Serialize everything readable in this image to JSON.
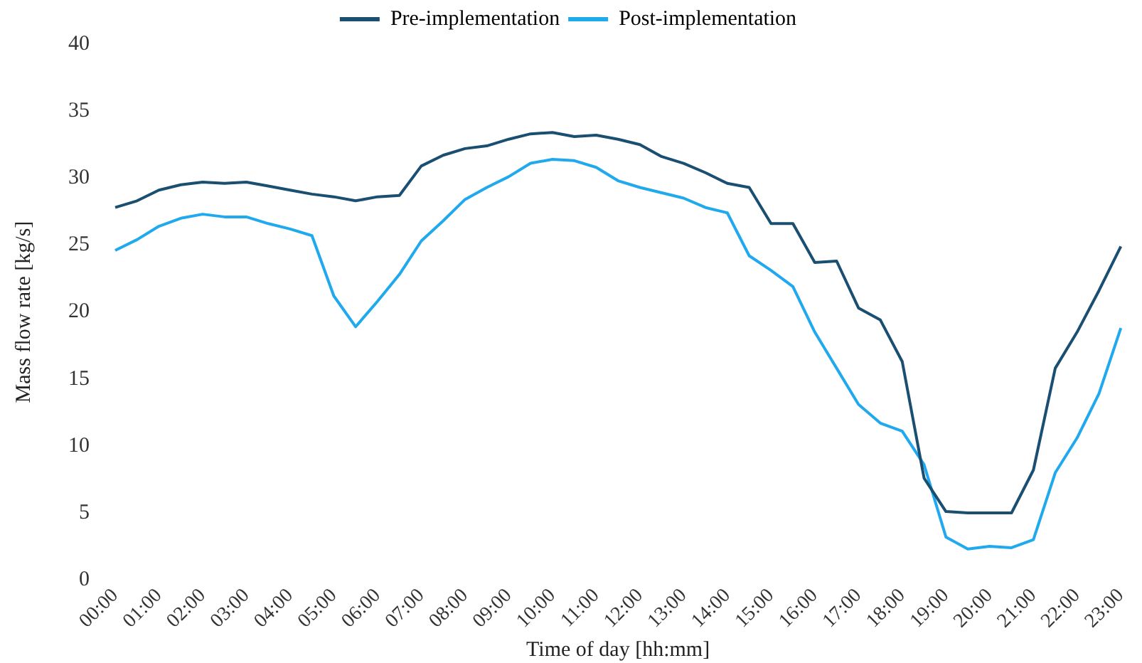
{
  "chart_data": {
    "type": "line",
    "xlabel": "Time of day [hh:mm]",
    "ylabel": "Mass flow rate [kg/s]",
    "categories": [
      "00:00",
      null,
      "01:00",
      null,
      "02:00",
      null,
      "03:00",
      null,
      "04:00",
      null,
      "05:00",
      null,
      "06:00",
      null,
      "07:00",
      null,
      "08:00",
      null,
      "09:00",
      null,
      "10:00",
      null,
      "11:00",
      null,
      "12:00",
      null,
      "13:00",
      null,
      "14:00",
      null,
      "15:00",
      null,
      "16:00",
      null,
      "17:00",
      null,
      "18:00",
      null,
      "19:00",
      null,
      "20:00",
      null,
      "21:00",
      null,
      "22:00",
      null,
      "23:00"
    ],
    "series": [
      {
        "name": "Pre-implementation",
        "color": "#1b4f72",
        "values": [
          27.8,
          28.3,
          29.1,
          29.5,
          29.7,
          29.6,
          29.7,
          29.4,
          29.1,
          28.8,
          28.6,
          28.3,
          28.6,
          28.7,
          30.9,
          31.7,
          32.2,
          32.4,
          32.9,
          33.3,
          33.4,
          33.1,
          33.2,
          32.9,
          32.5,
          31.6,
          31.1,
          30.4,
          29.6,
          29.3,
          26.6,
          26.6,
          23.7,
          23.8,
          20.3,
          19.4,
          16.3,
          7.6,
          5.1,
          5.0,
          5.0,
          5.0,
          8.2,
          15.8,
          18.5,
          21.6,
          24.9
        ]
      },
      {
        "name": "Post-implementation",
        "color": "#21a9ee",
        "values": [
          24.6,
          25.4,
          26.4,
          27.0,
          27.3,
          27.1,
          27.1,
          26.6,
          26.2,
          25.7,
          21.2,
          18.9,
          20.8,
          22.8,
          25.3,
          26.8,
          28.4,
          29.3,
          30.1,
          31.1,
          31.4,
          31.3,
          30.8,
          29.8,
          29.3,
          28.9,
          28.5,
          27.8,
          27.4,
          24.2,
          23.1,
          21.9,
          18.5,
          15.8,
          13.1,
          11.7,
          11.1,
          8.6,
          3.2,
          2.3,
          2.5,
          2.4,
          3.0,
          8.0,
          10.6,
          13.9,
          18.8
        ]
      }
    ],
    "ylim": [
      0,
      40
    ],
    "yticks": [
      0,
      5,
      10,
      15,
      20,
      25,
      30,
      35,
      40
    ],
    "grid": false,
    "legend": "top",
    "marker": "none",
    "line_style": "solid"
  }
}
